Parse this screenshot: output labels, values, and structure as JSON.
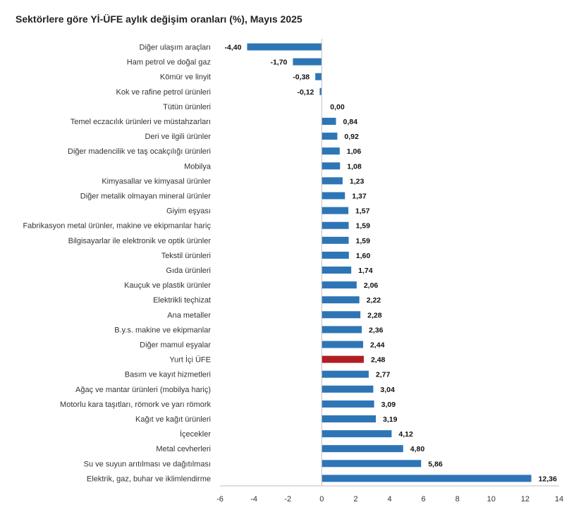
{
  "chart_data": {
    "type": "bar",
    "orientation": "horizontal",
    "title": "Sektörlere göre Yİ-ÜFE aylık değişim oranları (%), Mayıs 2025",
    "xlim": [
      -6,
      14
    ],
    "xticks": [
      "-6",
      "-4",
      "-2",
      "0",
      "2",
      "4",
      "6",
      "8",
      "10",
      "12",
      "14"
    ],
    "grid": false,
    "colors": {
      "default": "#2e75b6",
      "highlight": "#b01e23"
    },
    "highlight_category": "Yurt İçi ÜFE",
    "categories": [
      "Diğer ulaşım araçları",
      "Ham petrol ve doğal gaz",
      "Kömür ve linyit",
      "Kok ve rafine petrol ürünleri",
      "Tütün ürünleri",
      "Temel eczacılık ürünleri ve müstahzarları",
      "Deri ve ilgili ürünler",
      "Diğer madencilik ve taş ocakçılığı ürünleri",
      "Mobilya",
      "Kimyasallar ve kimyasal ürünler",
      "Diğer metalik olmayan mineral ürünler",
      "Giyim eşyası",
      "Fabrikasyon metal ürünler, makine ve ekipmanlar hariç",
      "Bilgisayarlar ile elektronik ve optik ürünler",
      "Tekstil ürünleri",
      "Gıda ürünleri",
      "Kauçuk ve plastik ürünler",
      "Elektrikli teçhizat",
      "Ana metaller",
      "B.y.s. makine ve ekipmanlar",
      "Diğer mamul eşyalar",
      "Yurt İçi ÜFE",
      "Basım ve kayıt hizmetleri",
      "Ağaç ve mantar ürünleri (mobilya hariç)",
      "Motorlu kara taşıtları, römork ve yarı römork",
      "Kağıt ve kağıt ürünleri",
      "İçecekler",
      "Metal cevherleri",
      "Su ve suyun arıtılması ve dağıtılması",
      "Elektrik, gaz, buhar ve iklimlendirme"
    ],
    "values": [
      -4.4,
      -1.7,
      -0.38,
      -0.12,
      0.0,
      0.84,
      0.92,
      1.06,
      1.08,
      1.23,
      1.37,
      1.57,
      1.59,
      1.59,
      1.6,
      1.74,
      2.06,
      2.22,
      2.28,
      2.36,
      2.44,
      2.48,
      2.77,
      3.04,
      3.09,
      3.19,
      4.12,
      4.8,
      5.86,
      12.36
    ],
    "value_labels": [
      "-4,40",
      "-1,70",
      "-0,38",
      "-0,12",
      "0,00",
      "0,84",
      "0,92",
      "1,06",
      "1,08",
      "1,23",
      "1,37",
      "1,57",
      "1,59",
      "1,59",
      "1,60",
      "1,74",
      "2,06",
      "2,22",
      "2,28",
      "2,36",
      "2,44",
      "2,48",
      "2,77",
      "3,04",
      "3,09",
      "3,19",
      "4,12",
      "4,80",
      "5,86",
      "12,36"
    ]
  }
}
